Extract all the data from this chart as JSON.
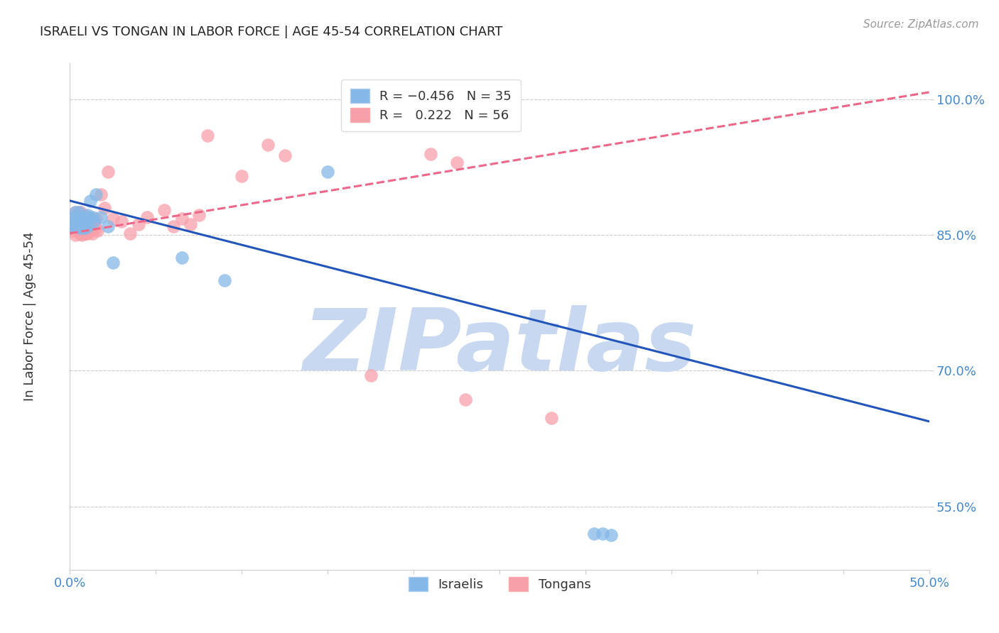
{
  "title": "ISRAELI VS TONGAN IN LABOR FORCE | AGE 45-54 CORRELATION CHART",
  "source": "Source: ZipAtlas.com",
  "ylabel": "In Labor Force | Age 45-54",
  "xlim": [
    0.0,
    0.5
  ],
  "ylim": [
    0.48,
    1.04
  ],
  "xtick_positions": [
    0.0,
    0.05,
    0.1,
    0.15,
    0.2,
    0.25,
    0.3,
    0.35,
    0.4,
    0.45,
    0.5
  ],
  "xtick_labels_show": {
    "0.0": "0.0%",
    "0.5": "50.0%"
  },
  "yticks": [
    0.55,
    0.7,
    0.85,
    1.0
  ],
  "yticklabels": [
    "55.0%",
    "70.0%",
    "85.0%",
    "100.0%"
  ],
  "israeli_color": "#85b8e8",
  "tongan_color": "#f8a0aa",
  "grid_color": "#cccccc",
  "tick_color": "#4488cc",
  "background_color": "#ffffff",
  "watermark_text": "ZIPatlas",
  "watermark_color": "#c8d8f0",
  "israeli_line_color": "#2255bb",
  "tongan_line_color": "#ee6688",
  "israeli_line_x": [
    0.0,
    0.5
  ],
  "israeli_line_y": [
    0.888,
    0.644
  ],
  "tongan_line_x": [
    0.0,
    0.5
  ],
  "tongan_line_y": [
    0.852,
    1.008
  ],
  "israeli_scatter_x": [
    0.001,
    0.002,
    0.002,
    0.003,
    0.003,
    0.004,
    0.004,
    0.005,
    0.005,
    0.005,
    0.006,
    0.006,
    0.007,
    0.007,
    0.007,
    0.008,
    0.008,
    0.009,
    0.009,
    0.01,
    0.01,
    0.011,
    0.012,
    0.013,
    0.014,
    0.015,
    0.018,
    0.022,
    0.025,
    0.065,
    0.09,
    0.15,
    0.305,
    0.31,
    0.315
  ],
  "israeli_scatter_y": [
    0.86,
    0.862,
    0.87,
    0.86,
    0.875,
    0.865,
    0.87,
    0.86,
    0.87,
    0.875,
    0.858,
    0.867,
    0.858,
    0.862,
    0.87,
    0.862,
    0.868,
    0.858,
    0.865,
    0.86,
    0.872,
    0.87,
    0.888,
    0.87,
    0.865,
    0.895,
    0.87,
    0.86,
    0.82,
    0.825,
    0.8,
    0.92,
    0.52,
    0.52,
    0.518
  ],
  "tongan_scatter_x": [
    0.001,
    0.001,
    0.002,
    0.002,
    0.003,
    0.003,
    0.003,
    0.004,
    0.004,
    0.005,
    0.005,
    0.005,
    0.006,
    0.006,
    0.006,
    0.007,
    0.007,
    0.007,
    0.008,
    0.008,
    0.008,
    0.009,
    0.009,
    0.01,
    0.01,
    0.011,
    0.011,
    0.012,
    0.012,
    0.013,
    0.014,
    0.015,
    0.015,
    0.016,
    0.018,
    0.02,
    0.022,
    0.025,
    0.03,
    0.035,
    0.04,
    0.045,
    0.055,
    0.06,
    0.065,
    0.07,
    0.075,
    0.08,
    0.1,
    0.115,
    0.125,
    0.175,
    0.21,
    0.225,
    0.23,
    0.28
  ],
  "tongan_scatter_y": [
    0.858,
    0.865,
    0.855,
    0.868,
    0.85,
    0.862,
    0.875,
    0.858,
    0.87,
    0.855,
    0.862,
    0.875,
    0.852,
    0.862,
    0.875,
    0.85,
    0.858,
    0.87,
    0.852,
    0.86,
    0.872,
    0.852,
    0.862,
    0.852,
    0.865,
    0.855,
    0.862,
    0.855,
    0.865,
    0.852,
    0.862,
    0.858,
    0.868,
    0.855,
    0.895,
    0.88,
    0.92,
    0.868,
    0.865,
    0.852,
    0.862,
    0.87,
    0.878,
    0.86,
    0.868,
    0.862,
    0.872,
    0.96,
    0.915,
    0.95,
    0.938,
    0.695,
    0.94,
    0.93,
    0.668,
    0.648
  ]
}
